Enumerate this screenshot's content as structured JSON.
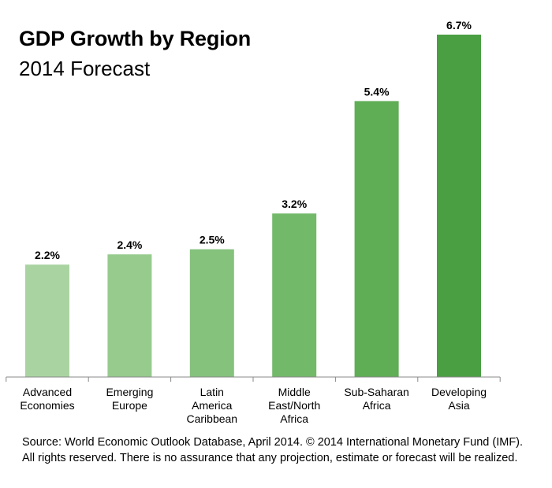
{
  "chart_data": {
    "type": "bar",
    "title": "GDP Growth by Region",
    "subtitle": "2014 Forecast",
    "categories": [
      [
        "Advanced",
        "Economies"
      ],
      [
        "Emerging",
        "Europe"
      ],
      [
        "Latin",
        "America",
        "Caribbean"
      ],
      [
        "Middle",
        "East/North",
        "Africa"
      ],
      [
        "Sub-Saharan",
        "Africa"
      ],
      [
        "Developing",
        "Asia"
      ]
    ],
    "values": [
      2.2,
      2.4,
      2.5,
      3.2,
      5.4,
      6.7
    ],
    "data_labels": [
      "2.2%",
      "2.4%",
      "2.5%",
      "3.2%",
      "5.4%",
      "6.7%"
    ],
    "bar_colors": [
      "#a9d4a1",
      "#96cb8d",
      "#85c27c",
      "#73b96a",
      "#5fae56",
      "#4a9f42"
    ],
    "ylim": [
      0,
      6.7
    ],
    "grid": false,
    "legend": "none"
  },
  "source": "Source:  World Economic Outlook Database, April 2014. © 2014 International Monetary Fund (IMF). All rights reserved. There is no assurance that any projection, estimate or forecast will be realized."
}
